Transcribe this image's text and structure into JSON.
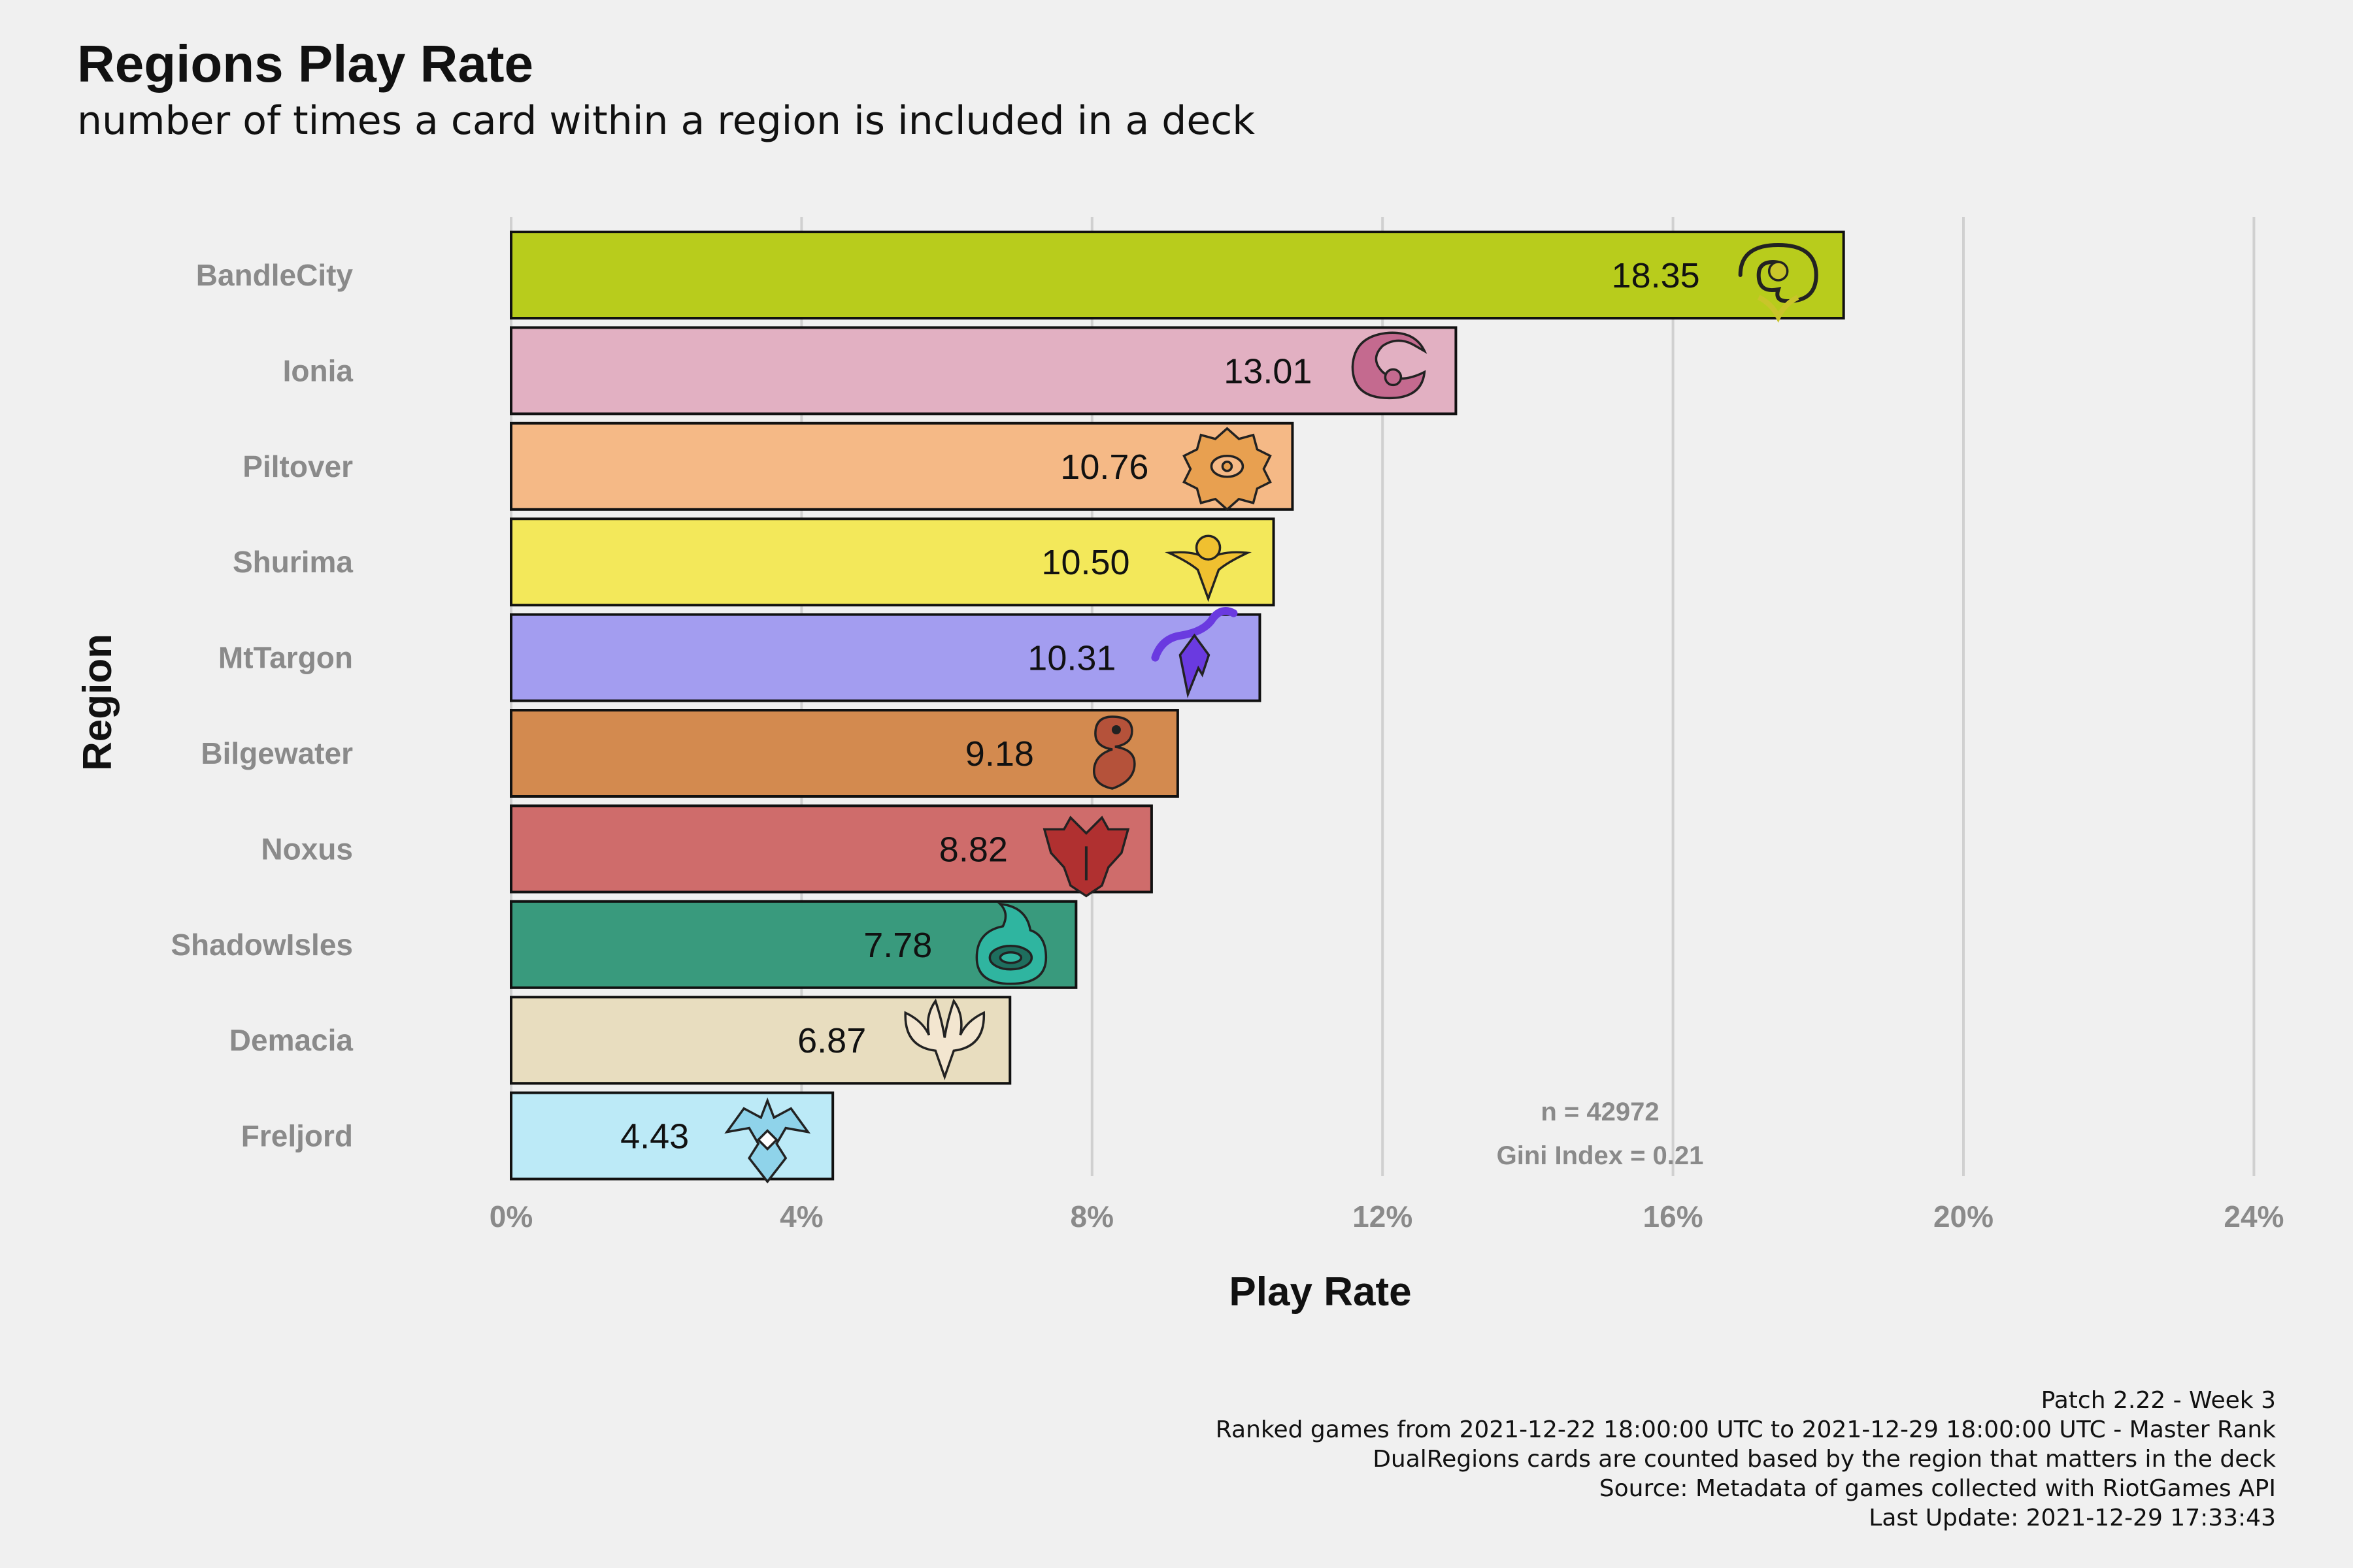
{
  "chart_data": {
    "type": "bar",
    "orientation": "horizontal",
    "title": "Regions Play Rate",
    "subtitle": "number of times a card within a region is included in a deck",
    "xlabel": "Play Rate",
    "ylabel": "Region",
    "xlim": [
      0,
      24
    ],
    "x_ticks": [
      "0%",
      "4%",
      "8%",
      "12%",
      "16%",
      "20%",
      "24%"
    ],
    "grid": "vertical major gridlines",
    "categories": [
      "BandleCity",
      "Ionia",
      "Piltover",
      "Shurima",
      "MtTargon",
      "Bilgewater",
      "Noxus",
      "ShadowIsles",
      "Demacia",
      "Freljord"
    ],
    "values": [
      18.35,
      13.01,
      10.76,
      10.5,
      10.31,
      9.18,
      8.82,
      7.78,
      6.87,
      4.43
    ],
    "value_labels": [
      "18.35",
      "13.01",
      "10.76",
      "10.50",
      "10.31",
      "9.18",
      "8.82",
      "7.78",
      "6.87",
      "4.43"
    ],
    "colors": [
      "#b8cc1c",
      "#e2b0c2",
      "#f5b986",
      "#f3e85a",
      "#a39df0",
      "#d38a4f",
      "#cf6c6b",
      "#399a7d",
      "#e8ddbf",
      "#bceaf7"
    ],
    "icon_colors": [
      "#c9c52a",
      "#c46a8f",
      "#e8a050",
      "#f0c030",
      "#6a3ae0",
      "#b5523a",
      "#b03030",
      "#2fb5a0",
      "#f3e6d0",
      "#8fd3ea"
    ],
    "icons": [
      "bandlecity-icon",
      "ionia-icon",
      "piltover-icon",
      "shurima-icon",
      "mttargon-icon",
      "bilgewater-icon",
      "noxus-icon",
      "shadowisles-icon",
      "demacia-icon",
      "freljord-icon"
    ],
    "annotations": [
      "n = 42972",
      "Gini Index = 0.21"
    ],
    "caption": [
      "Patch 2.22 - Week 3",
      "Ranked games from 2021-12-22 18:00:00 UTC to 2021-12-29 18:00:00 UTC - Master Rank",
      "DualRegions cards are counted based by the region that matters in the deck",
      "Source: Metadata of games collected with RiotGames API",
      "Last Update: 2021-12-29 17:33:43"
    ],
    "background": "#f0f0f0"
  }
}
